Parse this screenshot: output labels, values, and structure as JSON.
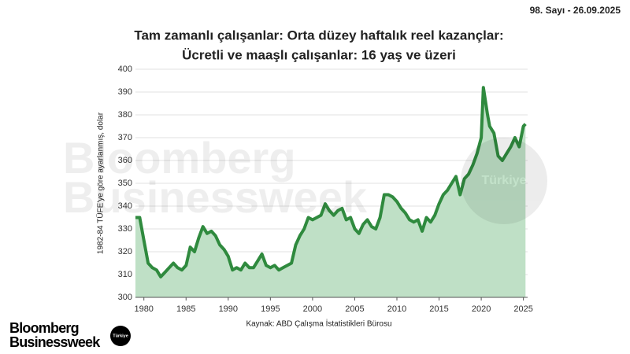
{
  "header": {
    "issue": "98. Sayı - 26.09.2025"
  },
  "brand": {
    "line1": "Bloomberg",
    "line2": "Businessweek",
    "badge": "Türkiye"
  },
  "watermark": {
    "line1": "Bloomberg",
    "line2": "Businessweek",
    "badge": "Türkiye"
  },
  "chart_data": {
    "type": "area",
    "title": [
      "Tam zamanlı çalışanlar: Orta düzey haftalık reel kazançlar:",
      "Ücretli ve maaşlı çalışanlar: 16 yaş ve üzeri"
    ],
    "y_label": "1982-84 TÜFE'ye göre ayarlanmış, dolar",
    "source": "Kaynak: ABD Çalışma İstatistikleri Bürosu",
    "line_color": "#2f8a3e",
    "fill_color": "#bfe0c6",
    "grid": true,
    "xlim": [
      1979,
      2025.5
    ],
    "xticks": [
      1980,
      1985,
      1990,
      1995,
      2000,
      2005,
      2010,
      2015,
      2020,
      2025
    ],
    "ylim": [
      300,
      400
    ],
    "yticks": [
      300,
      310,
      320,
      330,
      340,
      350,
      360,
      370,
      380,
      390,
      400
    ],
    "x": [
      1979,
      1979.5,
      1980,
      1980.5,
      1981,
      1981.5,
      1982,
      1982.5,
      1983,
      1983.5,
      1984,
      1984.5,
      1985,
      1985.5,
      1986,
      1986.5,
      1987,
      1987.5,
      1988,
      1988.5,
      1989,
      1989.5,
      1990,
      1990.5,
      1991,
      1991.5,
      1992,
      1992.5,
      1993,
      1993.5,
      1994,
      1994.5,
      1995,
      1995.5,
      1996,
      1996.5,
      1997,
      1997.5,
      1998,
      1998.5,
      1999,
      1999.5,
      2000,
      2000.5,
      2001,
      2001.5,
      2002,
      2002.5,
      2003,
      2003.5,
      2004,
      2004.5,
      2005,
      2005.5,
      2006,
      2006.5,
      2007,
      2007.5,
      2008,
      2008.5,
      2009,
      2009.5,
      2010,
      2010.5,
      2011,
      2011.5,
      2012,
      2012.5,
      2013,
      2013.5,
      2014,
      2014.5,
      2015,
      2015.5,
      2016,
      2016.5,
      2017,
      2017.5,
      2018,
      2018.5,
      2019,
      2019.5,
      2020,
      2020.25,
      2020.75,
      2021,
      2021.5,
      2022,
      2022.5,
      2023,
      2023.5,
      2024,
      2024.5,
      2025,
      2025.25
    ],
    "values": [
      335,
      335,
      325,
      315,
      313,
      312,
      309,
      311,
      313,
      315,
      313,
      312,
      314,
      322,
      320,
      326,
      331,
      328,
      329,
      327,
      323,
      321,
      318,
      312,
      313,
      312,
      315,
      313,
      313,
      316,
      319,
      314,
      313,
      314,
      312,
      313,
      314,
      315,
      323,
      327,
      330,
      335,
      334,
      335,
      336,
      341,
      338,
      336,
      338,
      339,
      334,
      335,
      330,
      328,
      332,
      334,
      331,
      330,
      335,
      345,
      345,
      344,
      342,
      339,
      337,
      334,
      333,
      334,
      329,
      335,
      333,
      336,
      341,
      345,
      347,
      350,
      353,
      345,
      352,
      354,
      358,
      363,
      370,
      392,
      380,
      375,
      372,
      362,
      360,
      363,
      366,
      370,
      366,
      375,
      376
    ]
  }
}
